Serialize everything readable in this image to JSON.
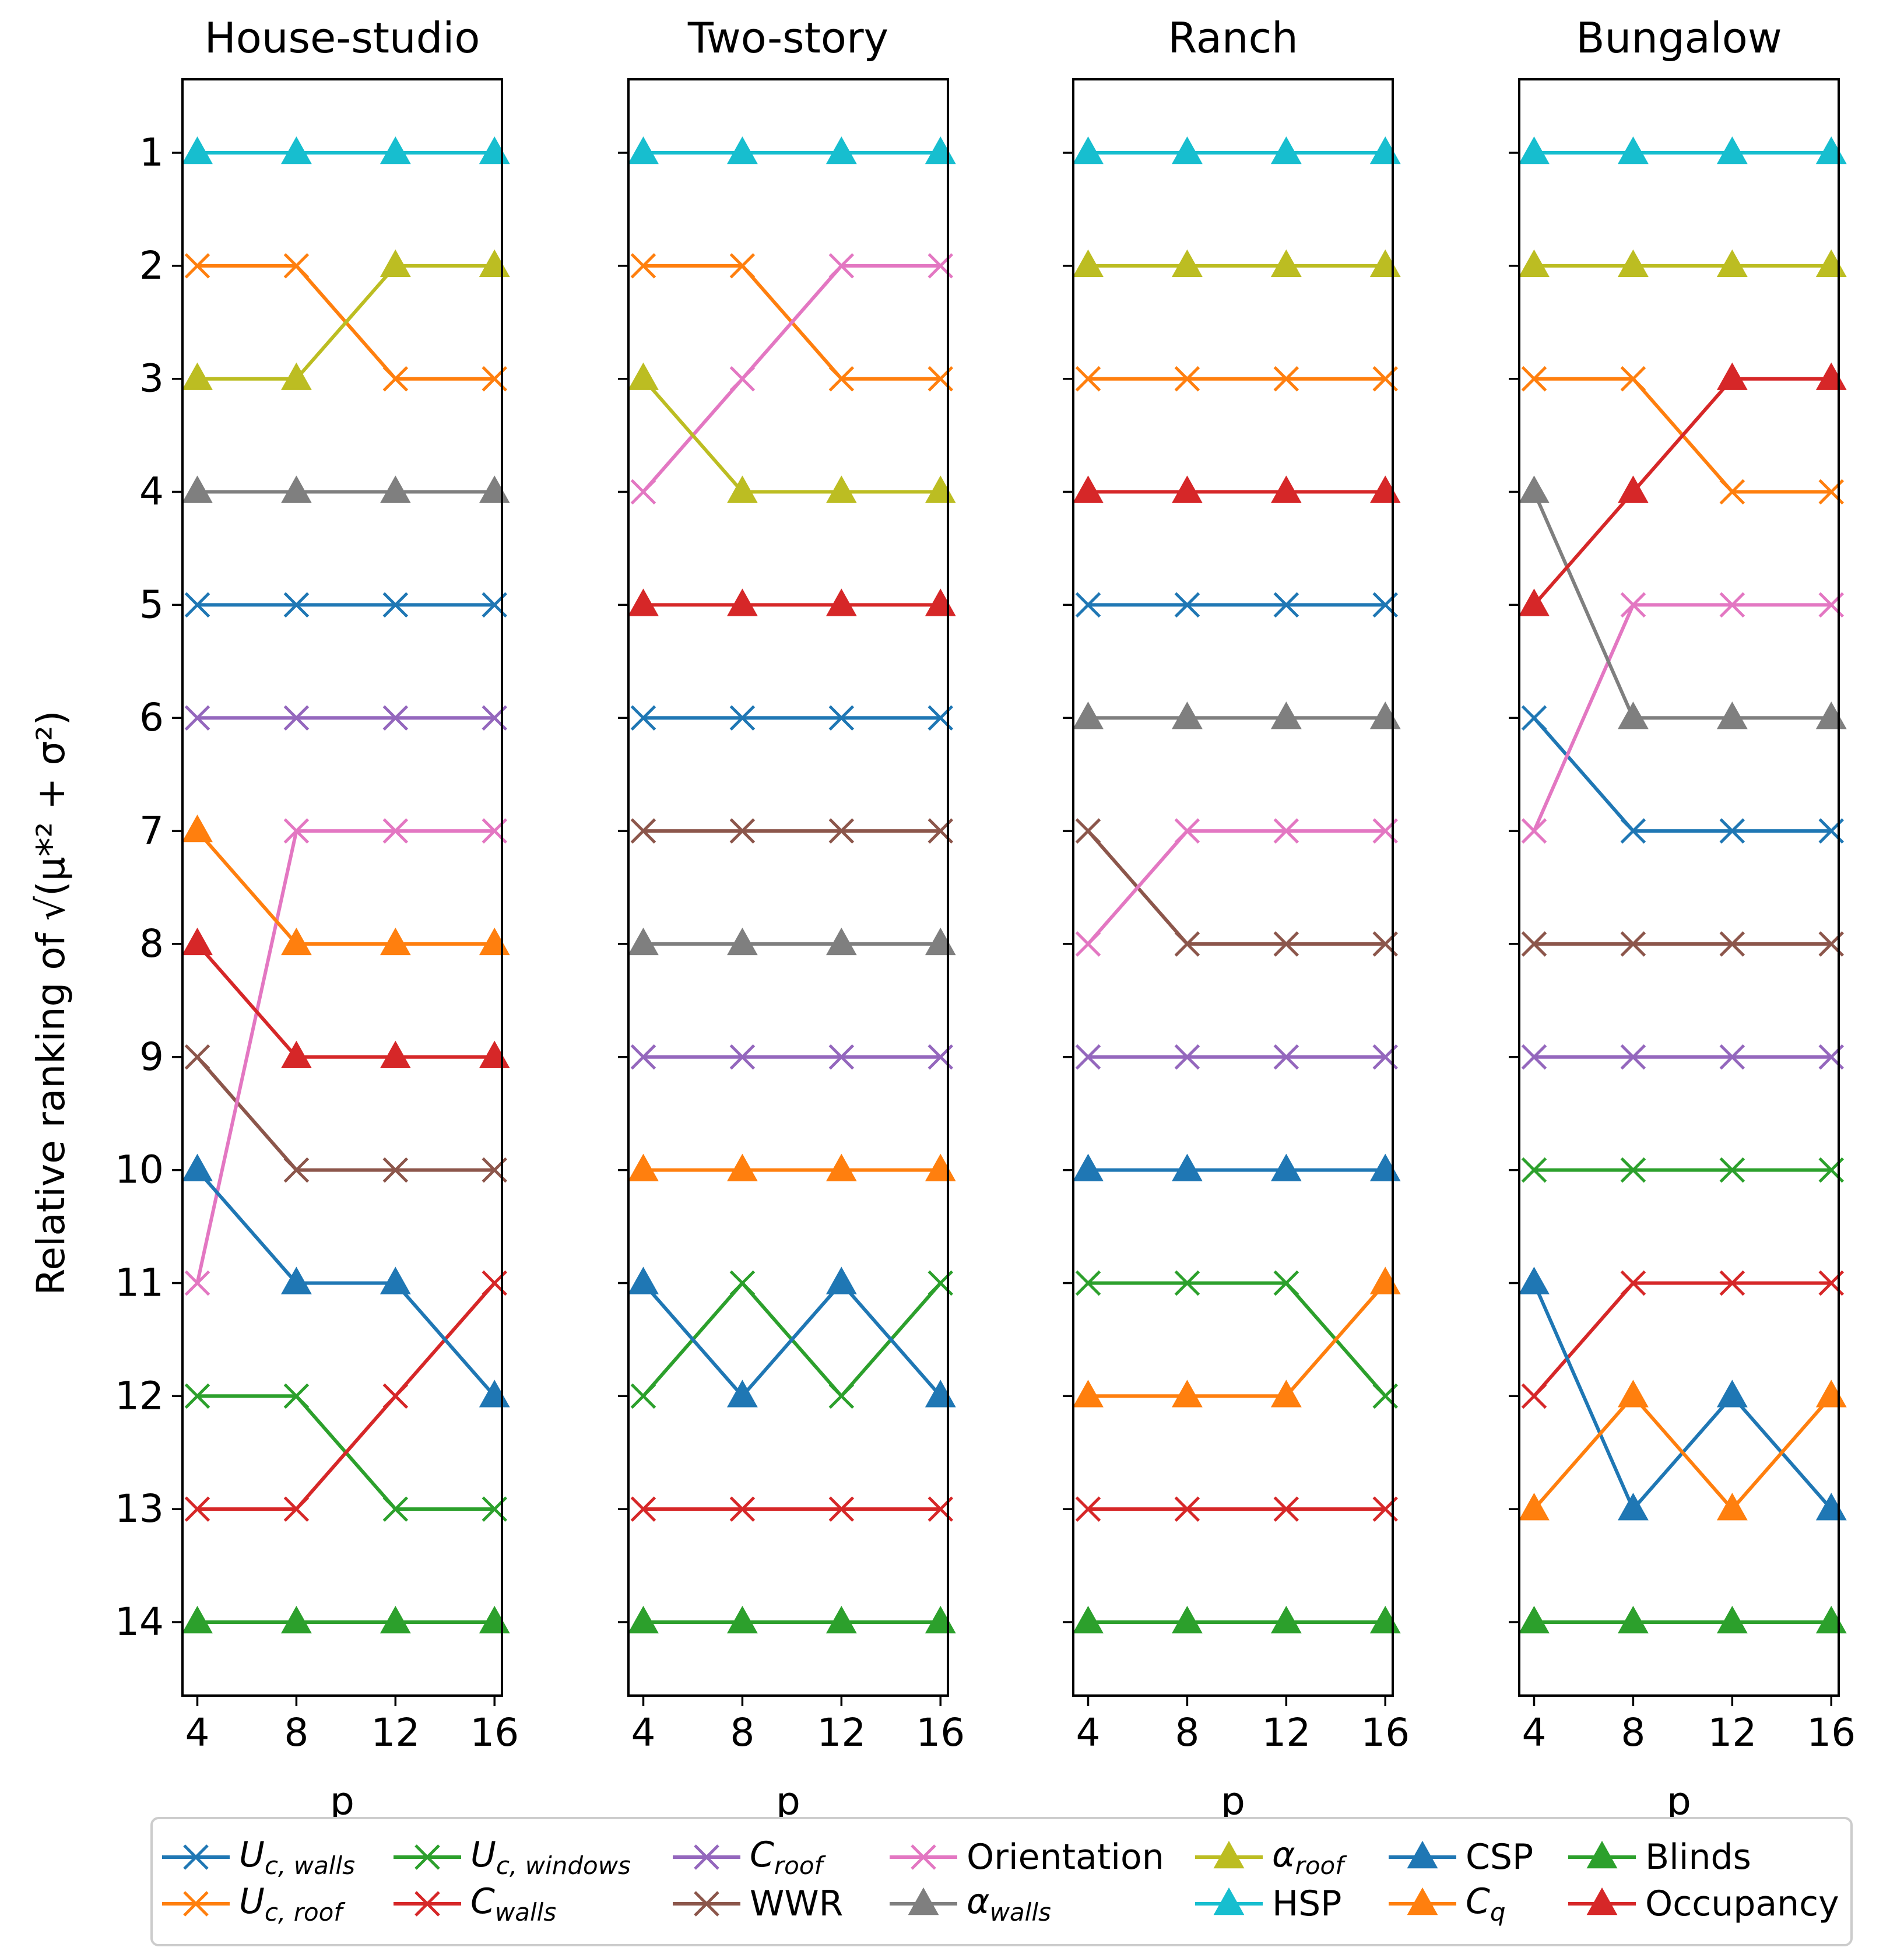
{
  "chart_data": {
    "type": "line",
    "ylabel": "Relative ranking of √(μ*² + σ²)",
    "xlabel": "p",
    "x": [
      4,
      8,
      12,
      16
    ],
    "x_ticks": [
      "4",
      "8",
      "12",
      "16"
    ],
    "y_ticks": [
      "1",
      "2",
      "3",
      "4",
      "5",
      "6",
      "7",
      "8",
      "9",
      "10",
      "11",
      "12",
      "13",
      "14"
    ],
    "ylim": [
      14.65,
      0.35
    ],
    "y_inverted": true,
    "legend_position": "bottom",
    "panels": [
      {
        "title": "House-studio",
        "series": [
          {
            "name": "U_c,walls",
            "values": [
              5,
              5,
              5,
              5
            ]
          },
          {
            "name": "U_c,roof",
            "values": [
              2,
              2,
              3,
              3
            ]
          },
          {
            "name": "U_c,windows",
            "values": [
              12,
              12,
              13,
              13
            ]
          },
          {
            "name": "C_walls",
            "values": [
              13,
              13,
              12,
              11
            ]
          },
          {
            "name": "C_roof",
            "values": [
              6,
              6,
              6,
              6
            ]
          },
          {
            "name": "WWR",
            "values": [
              9,
              10,
              10,
              10
            ]
          },
          {
            "name": "Orientation",
            "values": [
              11,
              7,
              7,
              7
            ]
          },
          {
            "name": "alpha_walls",
            "values": [
              4,
              4,
              4,
              4
            ]
          },
          {
            "name": "alpha_roof",
            "values": [
              3,
              3,
              2,
              2
            ]
          },
          {
            "name": "HSP",
            "values": [
              1,
              1,
              1,
              1
            ]
          },
          {
            "name": "CSP",
            "values": [
              10,
              11,
              11,
              12
            ]
          },
          {
            "name": "C_q",
            "values": [
              7,
              8,
              8,
              8
            ]
          },
          {
            "name": "Blinds",
            "values": [
              14,
              14,
              14,
              14
            ]
          },
          {
            "name": "Occupancy",
            "values": [
              8,
              9,
              9,
              9
            ]
          }
        ]
      },
      {
        "title": "Two-story",
        "series": [
          {
            "name": "U_c,walls",
            "values": [
              6,
              6,
              6,
              6
            ]
          },
          {
            "name": "U_c,roof",
            "values": [
              2,
              2,
              3,
              3
            ]
          },
          {
            "name": "U_c,windows",
            "values": [
              12,
              11,
              12,
              11
            ]
          },
          {
            "name": "C_walls",
            "values": [
              13,
              13,
              13,
              13
            ]
          },
          {
            "name": "C_roof",
            "values": [
              9,
              9,
              9,
              9
            ]
          },
          {
            "name": "WWR",
            "values": [
              7,
              7,
              7,
              7
            ]
          },
          {
            "name": "Orientation",
            "values": [
              4,
              3,
              2,
              2
            ]
          },
          {
            "name": "alpha_walls",
            "values": [
              8,
              8,
              8,
              8
            ]
          },
          {
            "name": "alpha_roof",
            "values": [
              3,
              4,
              4,
              4
            ]
          },
          {
            "name": "HSP",
            "values": [
              1,
              1,
              1,
              1
            ]
          },
          {
            "name": "CSP",
            "values": [
              11,
              12,
              11,
              12
            ]
          },
          {
            "name": "C_q",
            "values": [
              10,
              10,
              10,
              10
            ]
          },
          {
            "name": "Blinds",
            "values": [
              14,
              14,
              14,
              14
            ]
          },
          {
            "name": "Occupancy",
            "values": [
              5,
              5,
              5,
              5
            ]
          }
        ]
      },
      {
        "title": "Ranch",
        "series": [
          {
            "name": "U_c,walls",
            "values": [
              5,
              5,
              5,
              5
            ]
          },
          {
            "name": "U_c,roof",
            "values": [
              3,
              3,
              3,
              3
            ]
          },
          {
            "name": "U_c,windows",
            "values": [
              11,
              11,
              11,
              12
            ]
          },
          {
            "name": "C_walls",
            "values": [
              13,
              13,
              13,
              13
            ]
          },
          {
            "name": "C_roof",
            "values": [
              9,
              9,
              9,
              9
            ]
          },
          {
            "name": "WWR",
            "values": [
              7,
              8,
              8,
              8
            ]
          },
          {
            "name": "Orientation",
            "values": [
              8,
              7,
              7,
              7
            ]
          },
          {
            "name": "alpha_walls",
            "values": [
              6,
              6,
              6,
              6
            ]
          },
          {
            "name": "alpha_roof",
            "values": [
              2,
              2,
              2,
              2
            ]
          },
          {
            "name": "HSP",
            "values": [
              1,
              1,
              1,
              1
            ]
          },
          {
            "name": "CSP",
            "values": [
              10,
              10,
              10,
              10
            ]
          },
          {
            "name": "C_q",
            "values": [
              12,
              12,
              12,
              11
            ]
          },
          {
            "name": "Blinds",
            "values": [
              14,
              14,
              14,
              14
            ]
          },
          {
            "name": "Occupancy",
            "values": [
              4,
              4,
              4,
              4
            ]
          }
        ]
      },
      {
        "title": "Bungalow",
        "series": [
          {
            "name": "U_c,walls",
            "values": [
              6,
              7,
              7,
              7
            ]
          },
          {
            "name": "U_c,roof",
            "values": [
              3,
              3,
              4,
              4
            ]
          },
          {
            "name": "U_c,windows",
            "values": [
              10,
              10,
              10,
              10
            ]
          },
          {
            "name": "C_walls",
            "values": [
              12,
              11,
              11,
              11
            ]
          },
          {
            "name": "C_roof",
            "values": [
              9,
              9,
              9,
              9
            ]
          },
          {
            "name": "WWR",
            "values": [
              8,
              8,
              8,
              8
            ]
          },
          {
            "name": "Orientation",
            "values": [
              7,
              5,
              5,
              5
            ]
          },
          {
            "name": "alpha_walls",
            "values": [
              4,
              6,
              6,
              6
            ]
          },
          {
            "name": "alpha_roof",
            "values": [
              2,
              2,
              2,
              2
            ]
          },
          {
            "name": "HSP",
            "values": [
              1,
              1,
              1,
              1
            ]
          },
          {
            "name": "CSP",
            "values": [
              11,
              13,
              12,
              13
            ]
          },
          {
            "name": "C_q",
            "values": [
              13,
              12,
              13,
              12
            ]
          },
          {
            "name": "Blinds",
            "values": [
              14,
              14,
              14,
              14
            ]
          },
          {
            "name": "Occupancy",
            "values": [
              5,
              4,
              3,
              3
            ]
          }
        ]
      }
    ],
    "series_styles": {
      "U_c,walls": {
        "color": "#1f77b4",
        "marker": "x"
      },
      "U_c,roof": {
        "color": "#ff7f0e",
        "marker": "x"
      },
      "U_c,windows": {
        "color": "#2ca02c",
        "marker": "x"
      },
      "C_walls": {
        "color": "#d62728",
        "marker": "x"
      },
      "C_roof": {
        "color": "#9467bd",
        "marker": "x"
      },
      "WWR": {
        "color": "#8c564b",
        "marker": "x"
      },
      "Orientation": {
        "color": "#e377c2",
        "marker": "x"
      },
      "alpha_walls": {
        "color": "#7f7f7f",
        "marker": "triangle"
      },
      "alpha_roof": {
        "color": "#bcbd22",
        "marker": "triangle"
      },
      "HSP": {
        "color": "#17becf",
        "marker": "triangle"
      },
      "CSP": {
        "color": "#1f77b4",
        "marker": "triangle"
      },
      "C_q": {
        "color": "#ff7f0e",
        "marker": "triangle"
      },
      "Blinds": {
        "color": "#2ca02c",
        "marker": "triangle"
      },
      "Occupancy": {
        "color": "#d62728",
        "marker": "triangle"
      }
    }
  },
  "legend": {
    "items": [
      {
        "key": "U_c,walls",
        "base": "U",
        "sub": "c, walls",
        "plain": ""
      },
      {
        "key": "U_c,roof",
        "base": "U",
        "sub": "c, roof",
        "plain": ""
      },
      {
        "key": "U_c,windows",
        "base": "U",
        "sub": "c, windows",
        "plain": ""
      },
      {
        "key": "C_walls",
        "base": "C",
        "sub": "walls",
        "plain": ""
      },
      {
        "key": "C_roof",
        "base": "C",
        "sub": "roof",
        "plain": ""
      },
      {
        "key": "WWR",
        "base": "",
        "sub": "",
        "plain": "WWR"
      },
      {
        "key": "Orientation",
        "base": "",
        "sub": "",
        "plain": "Orientation"
      },
      {
        "key": "alpha_walls",
        "base": "α",
        "sub": "walls",
        "plain": ""
      },
      {
        "key": "alpha_roof",
        "base": "α",
        "sub": "roof",
        "plain": ""
      },
      {
        "key": "HSP",
        "base": "",
        "sub": "",
        "plain": "HSP"
      },
      {
        "key": "CSP",
        "base": "",
        "sub": "",
        "plain": "CSP"
      },
      {
        "key": "C_q",
        "base": "C",
        "sub": "q",
        "plain": ""
      },
      {
        "key": "Blinds",
        "base": "",
        "sub": "",
        "plain": "Blinds"
      },
      {
        "key": "Occupancy",
        "base": "",
        "sub": "",
        "plain": "Occupancy"
      }
    ]
  }
}
